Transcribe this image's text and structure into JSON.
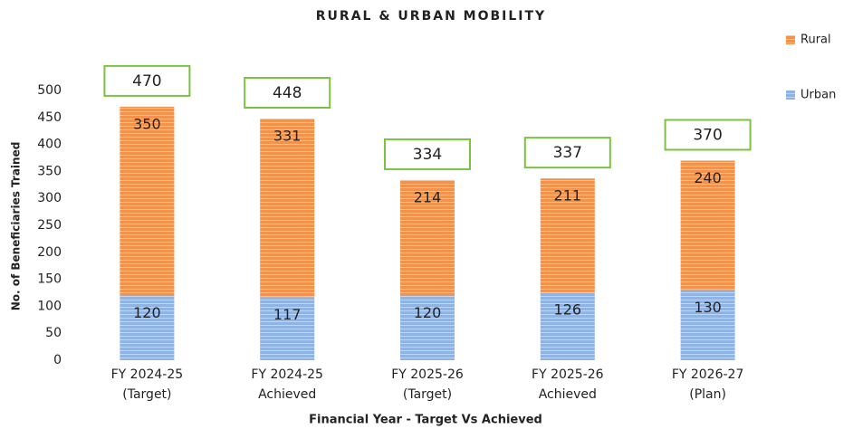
{
  "chart_data": {
    "type": "stacked_bar",
    "title": "RURAL & URBAN MOBILITY",
    "x_label": "Financial Year - Target Vs Achieved",
    "y_label": "No. of Beneficiaries Trained",
    "categories": [
      "FY 2024-25\n(Target)",
      "FY 2024-25\nAchieved",
      "FY 2025-26\n(Target)",
      "FY 2025-26\nAchieved",
      "FY 2026-27\n(Plan)"
    ],
    "series": [
      {
        "name": "Urban",
        "color": "#8fb4e3",
        "values": [
          120,
          117,
          120,
          126,
          130
        ]
      },
      {
        "name": "Rural",
        "color": "#f4914a",
        "values": [
          350,
          331,
          214,
          211,
          240
        ]
      }
    ],
    "totals": [
      470,
      448,
      334,
      337,
      370
    ],
    "ylim": [
      0,
      500
    ],
    "yticks": [
      0,
      50,
      100,
      150,
      200,
      250,
      300,
      350,
      400,
      450,
      500
    ],
    "grid": false,
    "legend": "right"
  }
}
